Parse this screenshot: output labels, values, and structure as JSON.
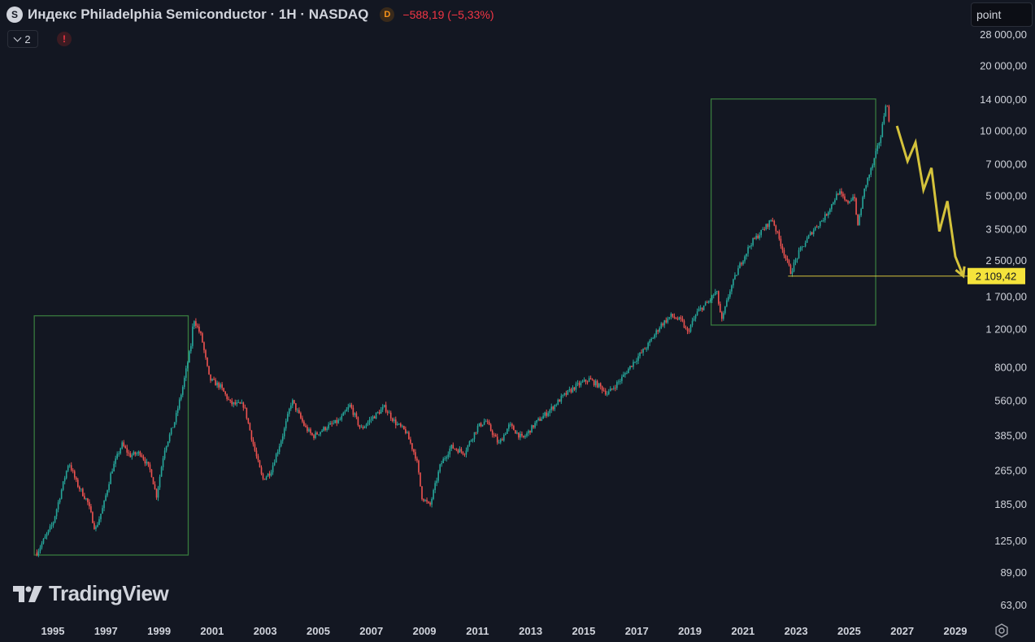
{
  "header": {
    "symbol_icon": "S",
    "title": "Индекс Philadelphia Semiconductor · 1H · NASDAQ",
    "badge": "D",
    "change": "−588,19 (−5,33%)"
  },
  "toolbar": {
    "indicators_count": "2",
    "alert_icon": "!"
  },
  "search": {
    "value": "point"
  },
  "logo": {
    "text": "TradingView"
  },
  "chart_data": {
    "type": "candlestick",
    "y_scale": "log",
    "ylim": [
      55,
      33000
    ],
    "xlim": [
      1994.3,
      2029.3
    ],
    "x_ticks": [
      1995,
      1997,
      1999,
      2001,
      2003,
      2005,
      2007,
      2009,
      2011,
      2013,
      2015,
      2017,
      2019,
      2021,
      2023,
      2025,
      2027,
      2029
    ],
    "y_ticks": [
      {
        "value": 28000,
        "label": "28 000,00"
      },
      {
        "value": 20000,
        "label": "20 000,00"
      },
      {
        "value": 14000,
        "label": "14 000,00"
      },
      {
        "value": 10000,
        "label": "10 000,00"
      },
      {
        "value": 7000,
        "label": "7 000,00"
      },
      {
        "value": 5000,
        "label": "5 000,00"
      },
      {
        "value": 3500,
        "label": "3 500,00"
      },
      {
        "value": 2500,
        "label": "2 500,00"
      },
      {
        "value": 1700,
        "label": "1 700,00"
      },
      {
        "value": 1200,
        "label": "1 200,00"
      },
      {
        "value": 800,
        "label": "800,00"
      },
      {
        "value": 560,
        "label": "560,00"
      },
      {
        "value": 385,
        "label": "385,00"
      },
      {
        "value": 265,
        "label": "265,00"
      },
      {
        "value": 185,
        "label": "185,00"
      },
      {
        "value": 125,
        "label": "125,00"
      },
      {
        "value": 89,
        "label": "89,00"
      },
      {
        "value": 63,
        "label": "63,00"
      }
    ],
    "price_path": [
      [
        1994.4,
        110
      ],
      [
        1995.0,
        150
      ],
      [
        1995.6,
        290
      ],
      [
        1995.9,
        230
      ],
      [
        1996.3,
        190
      ],
      [
        1996.6,
        140
      ],
      [
        1996.9,
        180
      ],
      [
        1997.2,
        260
      ],
      [
        1997.6,
        350
      ],
      [
        1997.9,
        310
      ],
      [
        1998.3,
        320
      ],
      [
        1998.7,
        260
      ],
      [
        1998.9,
        200
      ],
      [
        1999.2,
        330
      ],
      [
        1999.6,
        450
      ],
      [
        1999.9,
        650
      ],
      [
        2000.2,
        1000
      ],
      [
        2000.3,
        1350
      ],
      [
        2000.6,
        1100
      ],
      [
        2000.9,
        700
      ],
      [
        2001.3,
        650
      ],
      [
        2001.7,
        540
      ],
      [
        2002.2,
        530
      ],
      [
        2002.6,
        330
      ],
      [
        2002.9,
        240
      ],
      [
        2003.2,
        260
      ],
      [
        2003.7,
        400
      ],
      [
        2004.0,
        560
      ],
      [
        2004.5,
        420
      ],
      [
        2004.8,
        380
      ],
      [
        2005.3,
        420
      ],
      [
        2005.8,
        450
      ],
      [
        2006.2,
        530
      ],
      [
        2006.6,
        410
      ],
      [
        2007.0,
        460
      ],
      [
        2007.5,
        520
      ],
      [
        2007.9,
        440
      ],
      [
        2008.3,
        400
      ],
      [
        2008.7,
        300
      ],
      [
        2008.9,
        200
      ],
      [
        2009.2,
        180
      ],
      [
        2009.6,
        280
      ],
      [
        2010.0,
        340
      ],
      [
        2010.5,
        320
      ],
      [
        2011.0,
        420
      ],
      [
        2011.3,
        450
      ],
      [
        2011.8,
        350
      ],
      [
        2012.2,
        430
      ],
      [
        2012.7,
        370
      ],
      [
        2013.2,
        440
      ],
      [
        2013.7,
        500
      ],
      [
        2014.2,
        580
      ],
      [
        2014.7,
        650
      ],
      [
        2015.2,
        700
      ],
      [
        2015.6,
        650
      ],
      [
        2015.9,
        600
      ],
      [
        2016.4,
        700
      ],
      [
        2016.9,
        850
      ],
      [
        2017.4,
        1000
      ],
      [
        2017.9,
        1250
      ],
      [
        2018.3,
        1380
      ],
      [
        2018.7,
        1300
      ],
      [
        2018.9,
        1150
      ],
      [
        2019.3,
        1450
      ],
      [
        2019.7,
        1600
      ],
      [
        2020.0,
        1800
      ],
      [
        2020.2,
        1300
      ],
      [
        2020.5,
        1800
      ],
      [
        2020.9,
        2400
      ],
      [
        2021.3,
        3000
      ],
      [
        2021.8,
        3500
      ],
      [
        2022.1,
        3900
      ],
      [
        2022.5,
        2800
      ],
      [
        2022.8,
        2200
      ],
      [
        2023.1,
        2700
      ],
      [
        2023.6,
        3400
      ],
      [
        2024.1,
        4000
      ],
      [
        2024.6,
        5200
      ],
      [
        2024.9,
        4600
      ],
      [
        2025.2,
        5000
      ],
      [
        2025.3,
        3500
      ],
      [
        2025.6,
        5500
      ],
      [
        2025.9,
        7000
      ],
      [
        2026.2,
        9500
      ],
      [
        2026.4,
        14000
      ],
      [
        2026.5,
        11000
      ]
    ],
    "forecast_path": [
      [
        2026.8,
        10500
      ],
      [
        2027.2,
        7200
      ],
      [
        2027.5,
        8800
      ],
      [
        2027.8,
        5300
      ],
      [
        2028.1,
        6700
      ],
      [
        2028.4,
        3400
      ],
      [
        2028.7,
        4700
      ],
      [
        2029.0,
        2600
      ],
      [
        2029.3,
        2109
      ]
    ],
    "boxes": [
      {
        "x0": 1994.3,
        "x1": 2000.1,
        "y0": 107,
        "y1": 1380
      },
      {
        "x0": 2019.8,
        "x1": 2026.0,
        "y0": 1250,
        "y1": 14000
      }
    ],
    "level": {
      "value": 2109.42,
      "label": "2 109,42",
      "x0": 2022.7
    },
    "colors": {
      "up": "#26a69a",
      "down": "#ef5350",
      "box": "#387a3e",
      "forecast": "#d4c23b",
      "level_bg": "#f5e33b",
      "axis_text": "#d1d4dc"
    }
  }
}
